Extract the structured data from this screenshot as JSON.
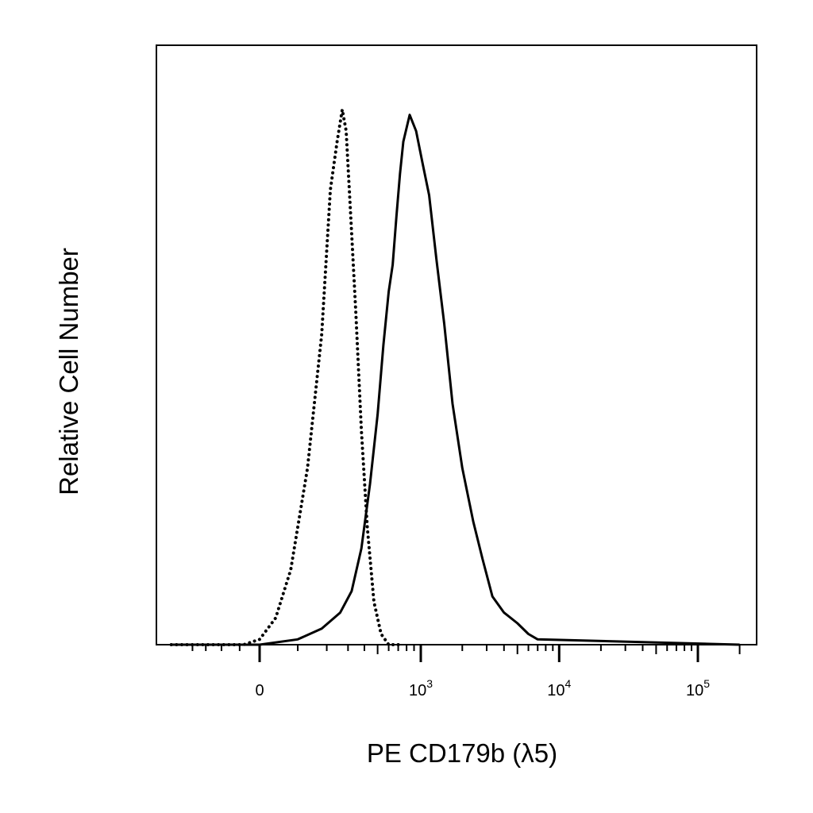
{
  "chart_data": {
    "type": "line",
    "title": "",
    "xlabel": "PE CD179b (λ5)",
    "ylabel": "Relative Cell Number",
    "x_scale": "biexponential",
    "xlim": [
      -300,
      200000
    ],
    "ylim": [
      0,
      100
    ],
    "grid": false,
    "legend": "none",
    "x_ticks": [
      {
        "value": 0,
        "base": "0",
        "exp": ""
      },
      {
        "value": 1000,
        "base": "10",
        "exp": "3"
      },
      {
        "value": 10000,
        "base": "10",
        "exp": "4"
      },
      {
        "value": 100000,
        "base": "10",
        "exp": "5"
      }
    ],
    "series": [
      {
        "style": "dotted",
        "color": "#000000",
        "x": [
          -300,
          -40,
          0,
          40,
          80,
          130,
          180,
          215,
          245,
          270,
          290,
          315,
          345,
          380,
          420,
          470,
          530,
          600,
          700
        ],
        "y": [
          0,
          0,
          1,
          5,
          14,
          33,
          58,
          85,
          94,
          100,
          96,
          80,
          62,
          40,
          22,
          8,
          2,
          0,
          0
        ]
      },
      {
        "style": "solid",
        "color": "#000000",
        "x": [
          -300,
          0,
          100,
          180,
          260,
          320,
          380,
          440,
          500,
          550,
          600,
          640,
          680,
          720,
          760,
          840,
          930,
          1030,
          1150,
          1300,
          1480,
          1700,
          2000,
          2400,
          2800,
          3300,
          4000,
          5000,
          6000,
          7000,
          200000
        ],
        "y": [
          0,
          0,
          1,
          3,
          6,
          10,
          18,
          30,
          43,
          56,
          66,
          71,
          80,
          88,
          94,
          99,
          96,
          90,
          84,
          72,
          60,
          45,
          33,
          23,
          16,
          9,
          6,
          4,
          2,
          1,
          0
        ]
      }
    ]
  }
}
